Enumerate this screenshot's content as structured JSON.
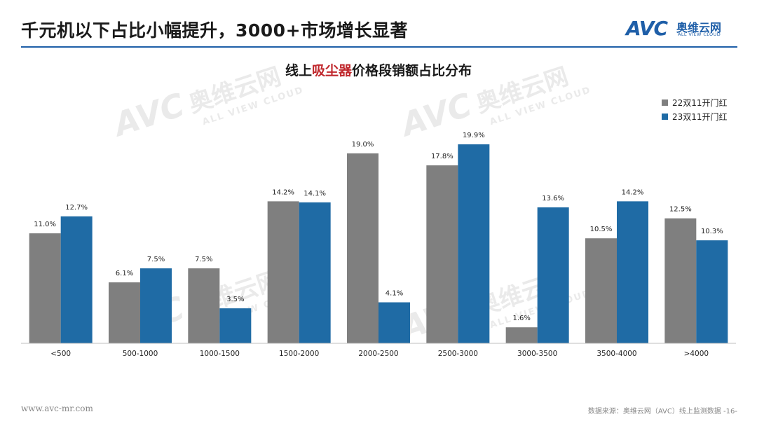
{
  "header": {
    "title": "千元机以下占比小幅提升，3000+市场增长显著"
  },
  "logo": {
    "mark": "AVC",
    "cn": "奥维云网",
    "en": "ALL VIEW CLOUD"
  },
  "chart_title": {
    "prefix": "线上",
    "highlight": "吸尘器",
    "suffix": "价格段销额占比分布"
  },
  "watermark": {
    "mark": "AVC",
    "cn": "奥维云网",
    "en": "ALL VIEW CLOUD"
  },
  "colors": {
    "series_1": "#7f7f7f",
    "series_2": "#1f6ba5",
    "accent": "#1f5fa8",
    "highlight": "#c0282d"
  },
  "chart_data": {
    "type": "bar",
    "categories": [
      "<500",
      "500-1000",
      "1000-1500",
      "1500-2000",
      "2000-2500",
      "2500-3000",
      "3000-3500",
      "3500-4000",
      ">4000"
    ],
    "series": [
      {
        "name": "22双11开门红",
        "values": [
          11.0,
          6.1,
          7.5,
          14.2,
          19.0,
          17.8,
          1.6,
          10.5,
          12.5
        ],
        "labels": [
          "11.0%",
          "6.1%",
          "7.5%",
          "14.2%",
          "19.0%",
          "17.8%",
          "1.6%",
          "10.5%",
          "12.5%"
        ]
      },
      {
        "name": "23双11开门红",
        "values": [
          12.7,
          7.5,
          3.5,
          14.1,
          4.1,
          19.9,
          13.6,
          14.2,
          10.3
        ],
        "labels": [
          "12.7%",
          "7.5%",
          "3.5%",
          "14.1%",
          "4.1%",
          "19.9%",
          "13.6%",
          "14.2%",
          "10.3%"
        ]
      }
    ],
    "unit": "%",
    "ylim": [
      0,
      21
    ],
    "grid": false,
    "legend_position": "top-right"
  },
  "footer": {
    "left": "www.avc-mr.com",
    "right": "数据来源：奥维云网（AVC）线上监测数据  -16-"
  }
}
